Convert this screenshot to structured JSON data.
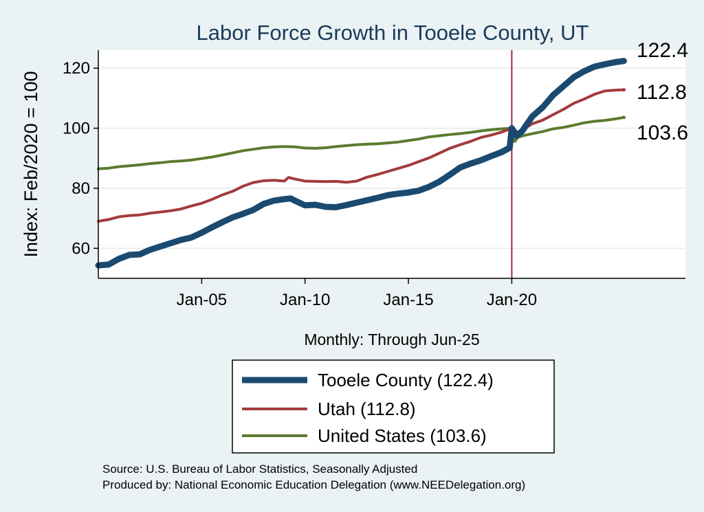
{
  "chart_data": {
    "type": "line",
    "title": "Labor Force Growth in Tooele  County, UT",
    "ylabel": "Index: Feb/2020 = 100",
    "xlabel": "Monthly: Through Jun-25",
    "ylim": [
      50,
      126
    ],
    "xlim": [
      2000.0,
      2028.4
    ],
    "yticks": [
      60,
      80,
      100,
      120
    ],
    "yticklabels": [
      "60",
      "80",
      "100",
      "120"
    ],
    "xticks": [
      2005.0,
      2010.0,
      2015.0,
      2020.0
    ],
    "xticklabels": [
      "Jan-05",
      "Jan-10",
      "Jan-15",
      "Jan-20"
    ],
    "grid": true,
    "reference_line": {
      "x": 2020.0,
      "color": "#a3253f"
    },
    "series": [
      {
        "name": "Tooele  County",
        "legend_label": "Tooele  County (122.4)",
        "end_label": "122.4",
        "color": "#1b4a70",
        "width": 9,
        "x": [
          2000.0,
          2000.5,
          2001.0,
          2001.5,
          2002.0,
          2002.5,
          2003.0,
          2003.5,
          2004.0,
          2004.5,
          2005.0,
          2005.5,
          2006.0,
          2006.5,
          2007.0,
          2007.5,
          2008.0,
          2008.5,
          2009.0,
          2009.3,
          2009.5,
          2010.0,
          2010.5,
          2011.0,
          2011.5,
          2012.0,
          2012.5,
          2013.0,
          2013.5,
          2014.0,
          2014.5,
          2015.0,
          2015.5,
          2016.0,
          2016.5,
          2017.0,
          2017.5,
          2018.0,
          2018.5,
          2019.0,
          2019.5,
          2019.9,
          2020.0,
          2020.25,
          2020.5,
          2021.0,
          2021.5,
          2022.0,
          2022.5,
          2023.0,
          2023.5,
          2024.0,
          2024.5,
          2025.0,
          2025.42
        ],
        "values": [
          54.3,
          54.6,
          56.5,
          57.8,
          58.0,
          59.5,
          60.6,
          61.7,
          62.8,
          63.6,
          65.2,
          67.0,
          68.7,
          70.3,
          71.5,
          72.8,
          74.8,
          75.9,
          76.4,
          76.6,
          75.9,
          74.3,
          74.5,
          73.8,
          73.7,
          74.4,
          75.2,
          76.0,
          76.8,
          77.7,
          78.2,
          78.6,
          79.2,
          80.5,
          82.2,
          84.5,
          86.9,
          88.2,
          89.3,
          90.7,
          92.0,
          93.5,
          100.0,
          97.5,
          99.0,
          104.0,
          107.0,
          111.0,
          114.0,
          117.0,
          119.0,
          120.5,
          121.3,
          122.0,
          122.4
        ]
      },
      {
        "name": "Utah",
        "legend_label": "Utah (112.8)",
        "end_label": "112.8",
        "color": "#a23b3c",
        "width": 4,
        "x": [
          2000.0,
          2000.5,
          2001.0,
          2001.5,
          2002.0,
          2002.5,
          2003.0,
          2003.5,
          2004.0,
          2004.5,
          2005.0,
          2005.5,
          2006.0,
          2006.5,
          2007.0,
          2007.5,
          2008.0,
          2008.5,
          2009.0,
          2009.2,
          2009.5,
          2010.0,
          2010.5,
          2011.0,
          2011.5,
          2012.0,
          2012.5,
          2013.0,
          2013.5,
          2014.0,
          2014.5,
          2015.0,
          2015.5,
          2016.0,
          2016.5,
          2017.0,
          2017.5,
          2018.0,
          2018.5,
          2019.0,
          2019.5,
          2020.0,
          2020.2,
          2020.5,
          2021.0,
          2021.5,
          2022.0,
          2022.5,
          2023.0,
          2023.5,
          2024.0,
          2024.5,
          2025.0,
          2025.42
        ],
        "values": [
          69.0,
          69.6,
          70.5,
          70.9,
          71.1,
          71.7,
          72.1,
          72.5,
          73.1,
          74.1,
          75.0,
          76.3,
          77.8,
          79.0,
          80.7,
          81.9,
          82.5,
          82.7,
          82.4,
          83.6,
          83.1,
          82.4,
          82.3,
          82.2,
          82.3,
          82.0,
          82.4,
          83.7,
          84.6,
          85.6,
          86.6,
          87.6,
          88.9,
          90.1,
          91.7,
          93.3,
          94.5,
          95.6,
          96.9,
          97.7,
          98.7,
          100.0,
          98.4,
          99.5,
          101.5,
          102.7,
          104.5,
          106.3,
          108.3,
          109.7,
          111.3,
          112.4,
          112.7,
          112.8
        ]
      },
      {
        "name": "United States",
        "legend_label": "United States (103.6)",
        "end_label": "103.6",
        "color": "#5a7b2e",
        "width": 4,
        "x": [
          2000.0,
          2000.5,
          2001.0,
          2001.5,
          2002.0,
          2002.5,
          2003.0,
          2003.5,
          2004.0,
          2004.5,
          2005.0,
          2005.5,
          2006.0,
          2006.5,
          2007.0,
          2007.5,
          2008.0,
          2008.5,
          2009.0,
          2009.5,
          2010.0,
          2010.5,
          2011.0,
          2011.5,
          2012.0,
          2012.5,
          2013.0,
          2013.5,
          2014.0,
          2014.5,
          2015.0,
          2015.5,
          2016.0,
          2016.5,
          2017.0,
          2017.5,
          2018.0,
          2018.5,
          2019.0,
          2019.5,
          2020.0,
          2020.15,
          2020.3,
          2020.6,
          2021.0,
          2021.5,
          2022.0,
          2022.5,
          2023.0,
          2023.5,
          2024.0,
          2024.5,
          2025.0,
          2025.42
        ],
        "values": [
          86.5,
          86.7,
          87.2,
          87.5,
          87.8,
          88.2,
          88.5,
          88.9,
          89.1,
          89.4,
          89.9,
          90.4,
          91.1,
          91.8,
          92.5,
          93.0,
          93.5,
          93.8,
          93.9,
          93.8,
          93.4,
          93.3,
          93.5,
          93.9,
          94.2,
          94.5,
          94.7,
          94.8,
          95.1,
          95.4,
          95.9,
          96.4,
          97.1,
          97.5,
          97.9,
          98.2,
          98.6,
          99.1,
          99.5,
          99.8,
          100.0,
          95.6,
          97.0,
          97.6,
          98.2,
          98.9,
          99.8,
          100.3,
          101.0,
          101.8,
          102.3,
          102.6,
          103.1,
          103.6
        ]
      }
    ],
    "source_line1": "Source: U.S. Bureau of Labor Statistics, Seasonally Adjusted",
    "source_line2": "Produced by: National Economic Education Delegation (www.NEEDelegation.org)"
  }
}
